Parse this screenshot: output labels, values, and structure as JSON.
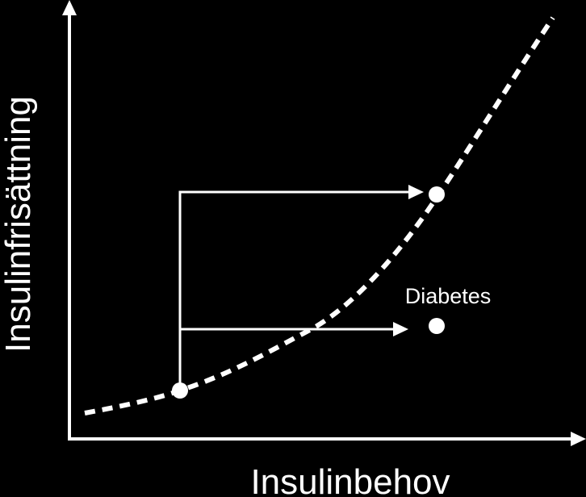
{
  "diagram": {
    "x_axis_label": "Insulinbehov",
    "y_axis_label": "Insulinfrisättning",
    "point_label": "Diabetes",
    "colors": {
      "background": "#000000",
      "foreground": "#ffffff"
    },
    "curve_style": "dashed",
    "arrow_style": "solid"
  }
}
